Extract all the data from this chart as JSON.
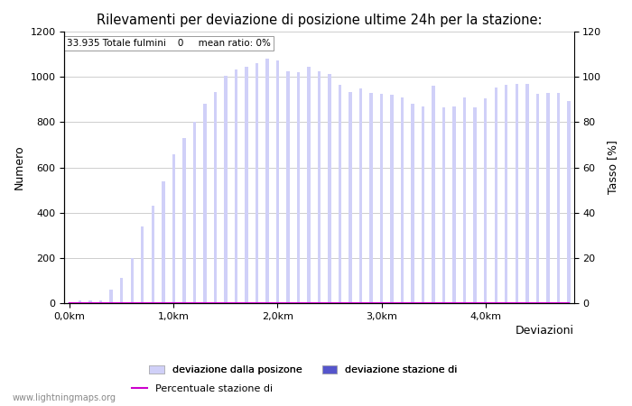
{
  "title": "Rilevamenti per deviazione di posizione ultime 24h per la stazione:",
  "subtitle": "33.935 Totale fulmini    0     mean ratio: 0%",
  "xlabel": "Deviazioni",
  "ylabel_left": "Numero",
  "ylabel_right": "Tasso [%]",
  "xtick_labels": [
    "0,0km",
    "1,0km",
    "2,0km",
    "3,0km",
    "4,0km"
  ],
  "xtick_positions": [
    0,
    10,
    20,
    30,
    40
  ],
  "ylim_left": [
    0,
    1200
  ],
  "ylim_right": [
    0,
    120
  ],
  "yticks_left": [
    0,
    200,
    400,
    600,
    800,
    1000,
    1200
  ],
  "yticks_right": [
    0,
    20,
    40,
    60,
    80,
    100,
    120
  ],
  "bar_color_light": "#d0d0f8",
  "bar_color_dark": "#5555cc",
  "line_color": "#cc00cc",
  "background_color": "#ffffff",
  "legend_labels": [
    "deviazione dalla posizone",
    "deviazione stazione di",
    "Percentuale stazione di"
  ],
  "watermark": "www.lightningmaps.org",
  "bar_values": [
    5,
    10,
    10,
    10,
    60,
    110,
    200,
    340,
    430,
    540,
    660,
    730,
    800,
    880,
    935,
    1005,
    1035,
    1045,
    1060,
    1080,
    1075,
    1025,
    1020,
    1045,
    1025,
    1015,
    965,
    935,
    950,
    930,
    925,
    920,
    910,
    880,
    870,
    960,
    865,
    870,
    910,
    865,
    905,
    955,
    965,
    970,
    970,
    925,
    930,
    930,
    895
  ],
  "bar_values2": [
    0,
    0,
    0,
    0,
    0,
    0,
    0,
    0,
    0,
    0,
    0,
    0,
    0,
    0,
    0,
    0,
    0,
    0,
    0,
    0,
    0,
    0,
    0,
    0,
    0,
    0,
    0,
    0,
    0,
    0,
    0,
    0,
    0,
    0,
    0,
    0,
    0,
    0,
    0,
    0,
    0,
    0,
    0,
    0,
    0,
    0,
    0,
    0,
    0
  ],
  "num_bars": 49,
  "bar_width": 0.3,
  "figsize": [
    7.0,
    4.5
  ],
  "dpi": 100
}
